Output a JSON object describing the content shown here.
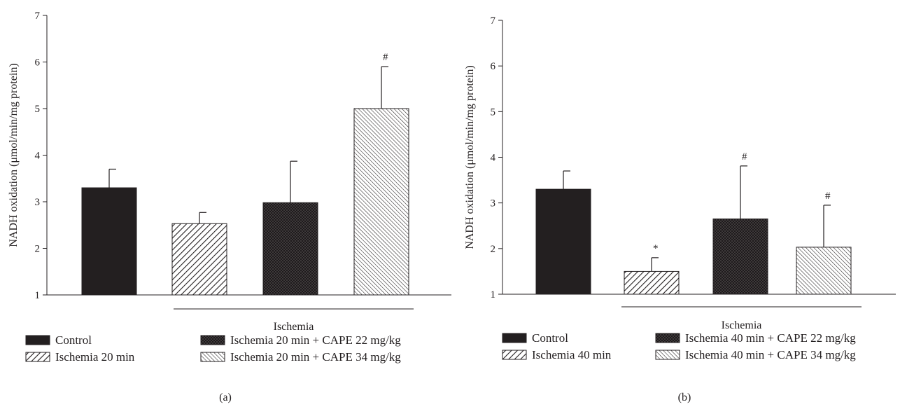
{
  "colors": {
    "ink": "#231f20",
    "control_fill": "#231f20",
    "bar_background": "#ffffff"
  },
  "chart_data": [
    {
      "type": "bar",
      "panel_label": "(a)",
      "ylabel": "NADH oxidation (μmol/min/mg protein)",
      "ylim": [
        1,
        7
      ],
      "yticks": [
        1,
        2,
        3,
        4,
        5,
        6,
        7
      ],
      "group_label": "Ischemia",
      "categories": [
        "Control",
        "Ischemia 20 min",
        "Ischemia 20 min + CAPE 22 mg/kg",
        "Ischemia 20 min + CAPE 34 mg/kg"
      ],
      "values": [
        3.3,
        2.53,
        2.98,
        5.0
      ],
      "errors": [
        0.4,
        0.24,
        0.89,
        0.9
      ],
      "annotations": [
        "",
        "",
        "",
        "#"
      ],
      "patterns": [
        "solid",
        "diagonal",
        "crosshatch",
        "diagonal-dense"
      ],
      "grid": false,
      "legend_placement": "bottom"
    },
    {
      "type": "bar",
      "panel_label": "(b)",
      "ylabel": "NADH oxidation (μmol/min/mg protein)",
      "ylim": [
        1,
        7
      ],
      "yticks": [
        1,
        2,
        3,
        4,
        5,
        6,
        7
      ],
      "group_label": "Ischemia",
      "categories": [
        "Control",
        "Ischemia 40 min",
        "Ischemia 40 min + CAPE 22 mg/kg",
        "Ischemia 40 min + CAPE 34 mg/kg"
      ],
      "values": [
        3.3,
        1.5,
        2.65,
        2.03
      ],
      "errors": [
        0.4,
        0.3,
        1.16,
        0.92
      ],
      "annotations": [
        "",
        "*",
        "#",
        "#"
      ],
      "patterns": [
        "solid",
        "diagonal",
        "crosshatch",
        "diagonal-dense"
      ],
      "grid": false,
      "legend_placement": "bottom"
    }
  ]
}
